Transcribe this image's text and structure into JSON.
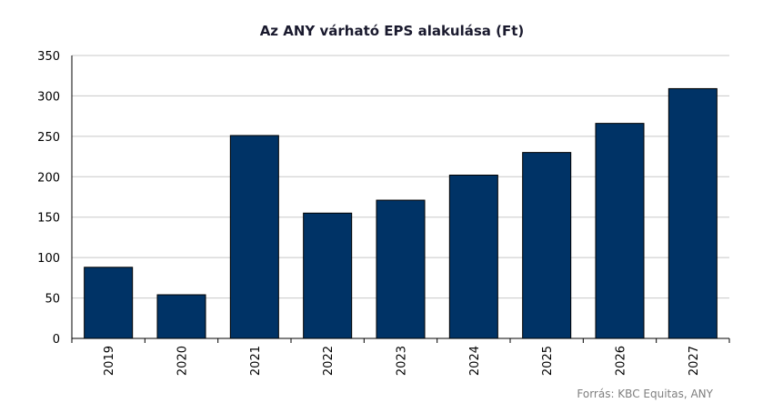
{
  "chart_data": {
    "type": "bar",
    "title": "Az ANY várható EPS alakulása (Ft)",
    "categories": [
      "2019",
      "2020",
      "2021",
      "2022",
      "2023",
      "2024",
      "2025",
      "2026",
      "2027"
    ],
    "values": [
      88,
      54,
      251,
      155,
      171,
      202,
      230,
      266,
      309
    ],
    "ylim": [
      0,
      350
    ],
    "yticks": [
      0,
      50,
      100,
      150,
      200,
      250,
      300,
      350
    ],
    "xlabel": "",
    "ylabel": "",
    "grid": true,
    "bar_color": "#003366",
    "source": "Forrás: KBC Equitas, ANY"
  }
}
